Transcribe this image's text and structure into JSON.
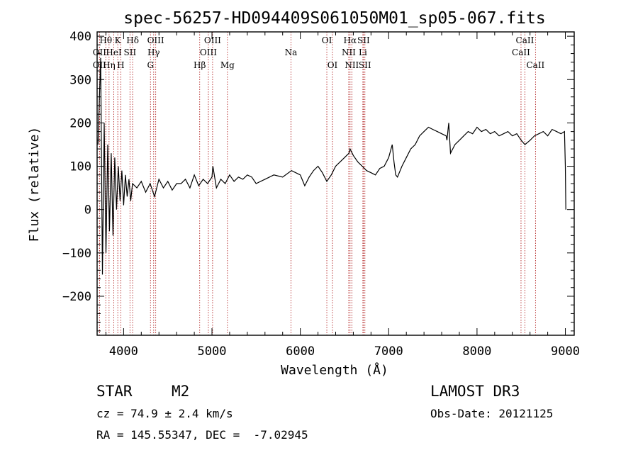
{
  "chart_data": {
    "type": "line",
    "title": "spec-56257-HD094409S061050M01_sp05-067.fits",
    "xlabel": "Wavelength (Å)",
    "ylabel": "Flux (relative)",
    "xlim": [
      3700,
      9100
    ],
    "ylim": [
      -290,
      410
    ],
    "x_ticks": [
      4000,
      5000,
      6000,
      7000,
      8000,
      9000
    ],
    "y_ticks": [
      -200,
      -100,
      0,
      100,
      200,
      300,
      400
    ],
    "series": [
      {
        "name": "spectrum",
        "x": [
          3710,
          3740,
          3760,
          3780,
          3800,
          3820,
          3840,
          3860,
          3880,
          3900,
          3920,
          3940,
          3960,
          3980,
          4000,
          4020,
          4040,
          4060,
          4080,
          4100,
          4150,
          4200,
          4250,
          4300,
          4350,
          4400,
          4450,
          4500,
          4550,
          4600,
          4650,
          4700,
          4750,
          4800,
          4850,
          4900,
          4950,
          5000,
          5010,
          5050,
          5100,
          5150,
          5200,
          5250,
          5300,
          5350,
          5400,
          5450,
          5500,
          5600,
          5700,
          5800,
          5900,
          6000,
          6050,
          6100,
          6150,
          6200,
          6250,
          6300,
          6350,
          6400,
          6450,
          6500,
          6550,
          6563,
          6600,
          6650,
          6700,
          6750,
          6800,
          6850,
          6900,
          6950,
          7000,
          7040,
          7060,
          7080,
          7100,
          7150,
          7200,
          7250,
          7300,
          7350,
          7400,
          7450,
          7500,
          7550,
          7600,
          7650,
          7660,
          7680,
          7700,
          7750,
          7800,
          7850,
          7900,
          7950,
          8000,
          8050,
          8100,
          8150,
          8200,
          8250,
          8300,
          8350,
          8400,
          8450,
          8500,
          8542,
          8600,
          8650,
          8700,
          8750,
          8800,
          8850,
          8900,
          8950,
          8990,
          9000,
          9005
        ],
        "y": [
          150,
          350,
          -150,
          200,
          -100,
          150,
          -50,
          130,
          -60,
          120,
          0,
          100,
          20,
          90,
          10,
          80,
          30,
          70,
          20,
          60,
          50,
          65,
          40,
          60,
          30,
          70,
          50,
          65,
          45,
          60,
          60,
          70,
          50,
          80,
          55,
          70,
          60,
          75,
          100,
          50,
          70,
          60,
          80,
          65,
          75,
          70,
          80,
          75,
          60,
          70,
          80,
          75,
          90,
          80,
          55,
          75,
          90,
          100,
          85,
          65,
          80,
          100,
          110,
          120,
          130,
          140,
          125,
          110,
          100,
          90,
          85,
          80,
          95,
          100,
          120,
          150,
          110,
          80,
          75,
          100,
          120,
          140,
          150,
          170,
          180,
          190,
          185,
          180,
          175,
          170,
          160,
          200,
          130,
          150,
          160,
          170,
          180,
          175,
          190,
          180,
          185,
          175,
          180,
          170,
          175,
          180,
          170,
          175,
          160,
          150,
          160,
          170,
          175,
          180,
          170,
          185,
          180,
          175,
          180,
          100,
          0
        ]
      }
    ],
    "lines": [
      {
        "name": "OII",
        "wavelength": 3727,
        "row": 2
      },
      {
        "name": "OII",
        "wavelength": 3727,
        "row": 3
      },
      {
        "name": "Hθ",
        "wavelength": 3798,
        "row": 1
      },
      {
        "name": "Hη",
        "wavelength": 3835,
        "row": 3
      },
      {
        "name": "HeI",
        "wavelength": 3889,
        "row": 2
      },
      {
        "name": "K",
        "wavelength": 3934,
        "row": 1
      },
      {
        "name": "H",
        "wavelength": 3968,
        "row": 3
      },
      {
        "name": "SII",
        "wavelength": 4072,
        "row": 2
      },
      {
        "name": "Hδ",
        "wavelength": 4102,
        "row": 1
      },
      {
        "name": "G",
        "wavelength": 4304,
        "row": 3
      },
      {
        "name": "Hγ",
        "wavelength": 4340,
        "row": 2
      },
      {
        "name": "OIII",
        "wavelength": 4363,
        "row": 1
      },
      {
        "name": "Hβ",
        "wavelength": 4861,
        "row": 3
      },
      {
        "name": "OIII",
        "wavelength": 4959,
        "row": 2
      },
      {
        "name": "OIII",
        "wavelength": 5007,
        "row": 1
      },
      {
        "name": "Mg",
        "wavelength": 5175,
        "row": 3
      },
      {
        "name": "Na",
        "wavelength": 5894,
        "row": 2
      },
      {
        "name": "OI",
        "wavelength": 6300,
        "row": 1
      },
      {
        "name": "OI",
        "wavelength": 6364,
        "row": 3
      },
      {
        "name": "NII",
        "wavelength": 6548,
        "row": 2
      },
      {
        "name": "Hα",
        "wavelength": 6563,
        "row": 1
      },
      {
        "name": "NII",
        "wavelength": 6583,
        "row": 3
      },
      {
        "name": "Li",
        "wavelength": 6708,
        "row": 2
      },
      {
        "name": "SII",
        "wavelength": 6716,
        "row": 1
      },
      {
        "name": "SII",
        "wavelength": 6731,
        "row": 3
      },
      {
        "name": "CaII",
        "wavelength": 8498,
        "row": 2
      },
      {
        "name": "CaII",
        "wavelength": 8542,
        "row": 1
      },
      {
        "name": "CaII",
        "wavelength": 8662,
        "row": 3
      }
    ],
    "grid": false,
    "line_color": "#000000",
    "marker_color": "#b22222"
  },
  "info": {
    "object_type": "STAR",
    "subclass": "M2",
    "survey": "LAMOST DR3",
    "cz": "cz = 74.9 ± 2.4 km/s",
    "obs_date": "Obs-Date: 20121125",
    "coords": "RA = 145.55347, DEC =  -7.02945"
  }
}
